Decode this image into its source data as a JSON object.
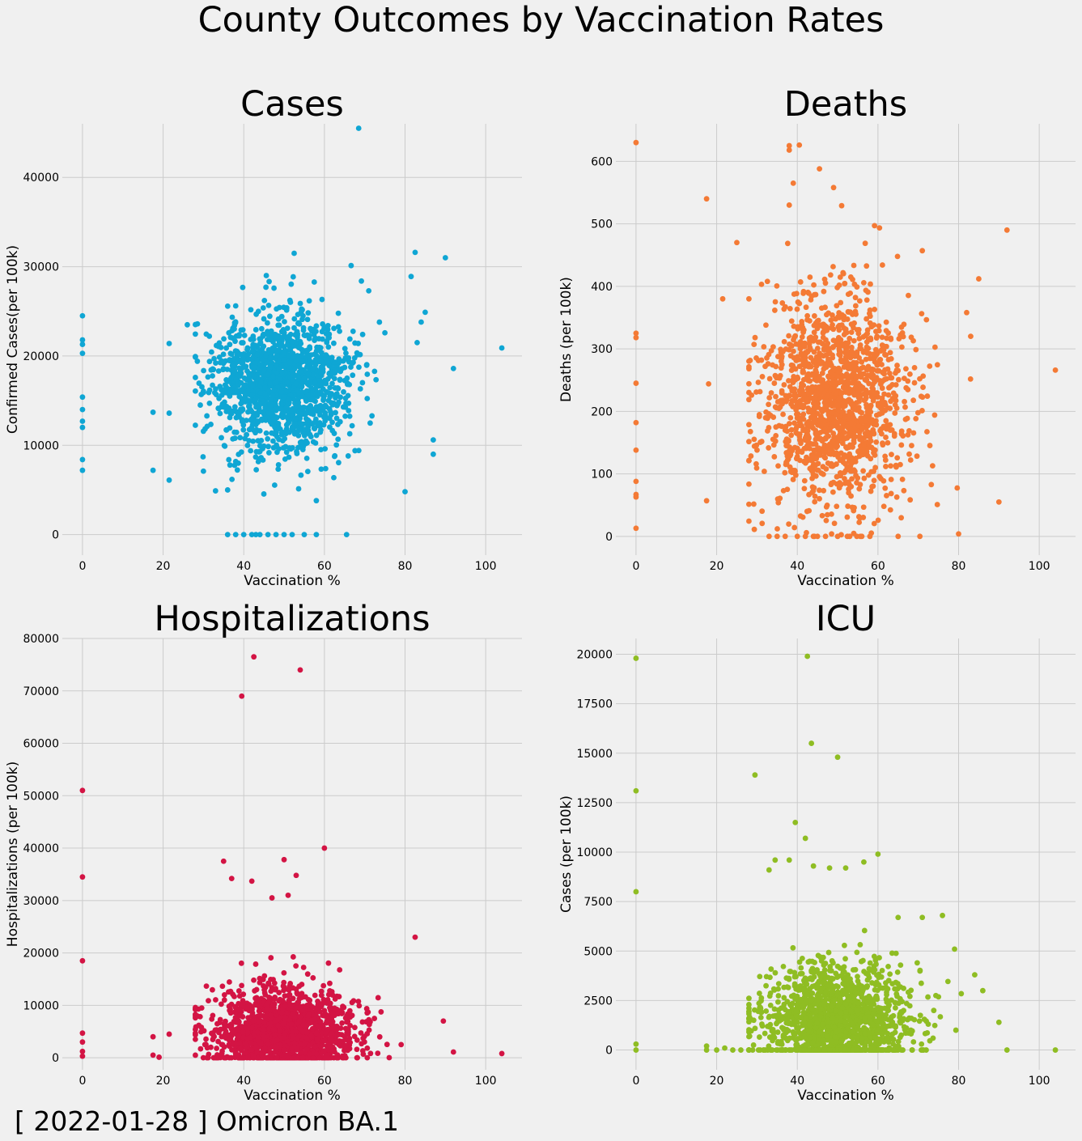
{
  "figure": {
    "suptitle": "County Outcomes by Vaccination Rates",
    "footnote": "[ 2022-01-28 ] Omicron BA.1",
    "background": "#f0f0f0",
    "grid_color": "#cbcbcb"
  },
  "chart_data": [
    {
      "type": "scatter",
      "title": "Cases",
      "xlabel": "Vaccination %",
      "ylabel": "Confirmed Cases(per 100k)",
      "color": "#0fa6d4",
      "grid": true,
      "xlim": [
        -5,
        109
      ],
      "ylim": [
        -2300,
        46000
      ],
      "xticks": [
        0,
        20,
        40,
        60,
        80,
        100
      ],
      "yticks": [
        0,
        10000,
        20000,
        30000,
        40000
      ],
      "cluster": {
        "center": [
          49,
          17000
        ],
        "spread": [
          8.5,
          3800
        ],
        "count": 1500,
        "seed": 11
      },
      "points": [
        [
          0,
          24500
        ],
        [
          0,
          21800
        ],
        [
          0,
          21300
        ],
        [
          0,
          20300
        ],
        [
          0,
          15400
        ],
        [
          0,
          14000
        ],
        [
          0,
          12700
        ],
        [
          0,
          12000
        ],
        [
          0,
          8400
        ],
        [
          0,
          7200
        ],
        [
          17.5,
          13700
        ],
        [
          17.5,
          7200
        ],
        [
          21.5,
          13600
        ],
        [
          21.5,
          6100
        ],
        [
          21.5,
          21400
        ],
        [
          26,
          23500
        ],
        [
          30,
          7100
        ],
        [
          33,
          4900
        ],
        [
          36,
          5000
        ],
        [
          58,
          3800
        ],
        [
          80,
          4800
        ],
        [
          36,
          0
        ],
        [
          38,
          0
        ],
        [
          40,
          0
        ],
        [
          42,
          0
        ],
        [
          43,
          0
        ],
        [
          44,
          0
        ],
        [
          46,
          0
        ],
        [
          48,
          0
        ],
        [
          50,
          0
        ],
        [
          52,
          0
        ],
        [
          55,
          0
        ],
        [
          58,
          0
        ],
        [
          65.5,
          0
        ],
        [
          68.5,
          45500
        ],
        [
          52.5,
          31500
        ],
        [
          82.5,
          31600
        ],
        [
          90,
          31000
        ],
        [
          81.5,
          28900
        ],
        [
          104,
          20900
        ],
        [
          92,
          18600
        ],
        [
          87,
          10600
        ],
        [
          87,
          9000
        ],
        [
          85,
          24900
        ],
        [
          84,
          23800
        ],
        [
          83,
          21500
        ],
        [
          75,
          22600
        ],
        [
          71,
          27300
        ],
        [
          47.5,
          27600
        ],
        [
          45.5,
          27700
        ]
      ]
    },
    {
      "type": "scatter",
      "title": "Deaths",
      "xlabel": "Vaccination %",
      "ylabel": "Deaths (per 100k)",
      "color": "#f47a35",
      "grid": true,
      "xlim": [
        -5,
        109
      ],
      "ylim": [
        -30,
        660
      ],
      "xticks": [
        0,
        20,
        40,
        60,
        80,
        100
      ],
      "yticks": [
        0,
        100,
        200,
        300,
        400,
        500,
        600
      ],
      "cluster": {
        "center": [
          49,
          215
        ],
        "spread": [
          9,
          85
        ],
        "count": 1500,
        "seed": 23
      },
      "points": [
        [
          0,
          630
        ],
        [
          0,
          325
        ],
        [
          0,
          318
        ],
        [
          0,
          245
        ],
        [
          0,
          182
        ],
        [
          0,
          138
        ],
        [
          0,
          88
        ],
        [
          0,
          67
        ],
        [
          0,
          63
        ],
        [
          0,
          13
        ],
        [
          17.5,
          540
        ],
        [
          17.5,
          57
        ],
        [
          18,
          244
        ],
        [
          21.5,
          380
        ],
        [
          25,
          470
        ],
        [
          38,
          625
        ],
        [
          38,
          618
        ],
        [
          40.5,
          626
        ],
        [
          45.5,
          588
        ],
        [
          39,
          565
        ],
        [
          49,
          558
        ],
        [
          38,
          530
        ],
        [
          51,
          529
        ],
        [
          92,
          490
        ],
        [
          104,
          266
        ],
        [
          85,
          412
        ],
        [
          71,
          457
        ],
        [
          82,
          358
        ],
        [
          83,
          320
        ],
        [
          90,
          55
        ],
        [
          80,
          4
        ],
        [
          33,
          0
        ],
        [
          35,
          0
        ],
        [
          37,
          0
        ],
        [
          40,
          0
        ],
        [
          42,
          0
        ],
        [
          45,
          0
        ],
        [
          47,
          0
        ],
        [
          50,
          0
        ],
        [
          53,
          0
        ],
        [
          56,
          0
        ],
        [
          58,
          0
        ],
        [
          65,
          0
        ]
      ]
    },
    {
      "type": "scatter",
      "title": "Hospitalizations",
      "xlabel": "Vaccination %",
      "ylabel": "Hospitalizations (per 100k)",
      "color": "#d31444",
      "grid": true,
      "xlim": [
        -5,
        109
      ],
      "ylim": [
        -2300,
        80000
      ],
      "xticks": [
        0,
        20,
        40,
        60,
        80,
        100
      ],
      "yticks": [
        0,
        10000,
        20000,
        30000,
        40000,
        50000,
        60000,
        70000,
        80000
      ],
      "cluster": {
        "center": [
          50,
          5000
        ],
        "spread": [
          9,
          4200
        ],
        "count": 1500,
        "seed": 37
      },
      "points": [
        [
          0,
          51000
        ],
        [
          0,
          34500
        ],
        [
          0,
          18500
        ],
        [
          0,
          4700
        ],
        [
          0,
          3000
        ],
        [
          0,
          1200
        ],
        [
          0,
          300
        ],
        [
          42.5,
          76500
        ],
        [
          54,
          74000
        ],
        [
          39.5,
          69000
        ],
        [
          60,
          40000
        ],
        [
          35,
          37500
        ],
        [
          50,
          37800
        ],
        [
          53,
          34800
        ],
        [
          37,
          34200
        ],
        [
          42,
          33700
        ],
        [
          47,
          30500
        ],
        [
          51,
          31000
        ],
        [
          82.5,
          23000
        ],
        [
          89.5,
          7000
        ],
        [
          92,
          1100
        ],
        [
          104,
          800
        ],
        [
          17.5,
          500
        ],
        [
          17.5,
          4000
        ],
        [
          21.5,
          4500
        ],
        [
          19,
          100
        ]
      ]
    },
    {
      "type": "scatter",
      "title": "ICU",
      "xlabel": "Vaccination %",
      "ylabel": "Cases (per 100k)",
      "color": "#8fbd23",
      "grid": true,
      "xlim": [
        -5,
        109
      ],
      "ylim": [
        -1000,
        20800
      ],
      "xticks": [
        0,
        20,
        40,
        60,
        80,
        100
      ],
      "yticks": [
        0,
        2500,
        5000,
        7500,
        10000,
        12500,
        15000,
        17500,
        20000
      ],
      "cluster": {
        "center": [
          50,
          1500
        ],
        "spread": [
          9,
          1400
        ],
        "count": 1500,
        "seed": 53
      },
      "points": [
        [
          0,
          19800
        ],
        [
          0,
          13100
        ],
        [
          0,
          8000
        ],
        [
          0,
          300
        ],
        [
          0,
          0
        ],
        [
          42.5,
          19900
        ],
        [
          43.5,
          15500
        ],
        [
          50,
          14800
        ],
        [
          29.5,
          13900
        ],
        [
          39.5,
          11500
        ],
        [
          42,
          10700
        ],
        [
          60,
          9900
        ],
        [
          34.5,
          9600
        ],
        [
          38,
          9600
        ],
        [
          33,
          9100
        ],
        [
          56.5,
          9500
        ],
        [
          44,
          9300
        ],
        [
          48,
          9200
        ],
        [
          52,
          9200
        ],
        [
          79,
          5100
        ],
        [
          76,
          6800
        ],
        [
          71,
          6700
        ],
        [
          65,
          6700
        ],
        [
          90,
          1400
        ],
        [
          92,
          0
        ],
        [
          104,
          0
        ],
        [
          17.5,
          200
        ],
        [
          17.5,
          0
        ],
        [
          20,
          0
        ],
        [
          22,
          100
        ],
        [
          24,
          0
        ],
        [
          26,
          0
        ],
        [
          28,
          0
        ],
        [
          84,
          3800
        ],
        [
          86,
          3000
        ]
      ]
    }
  ]
}
